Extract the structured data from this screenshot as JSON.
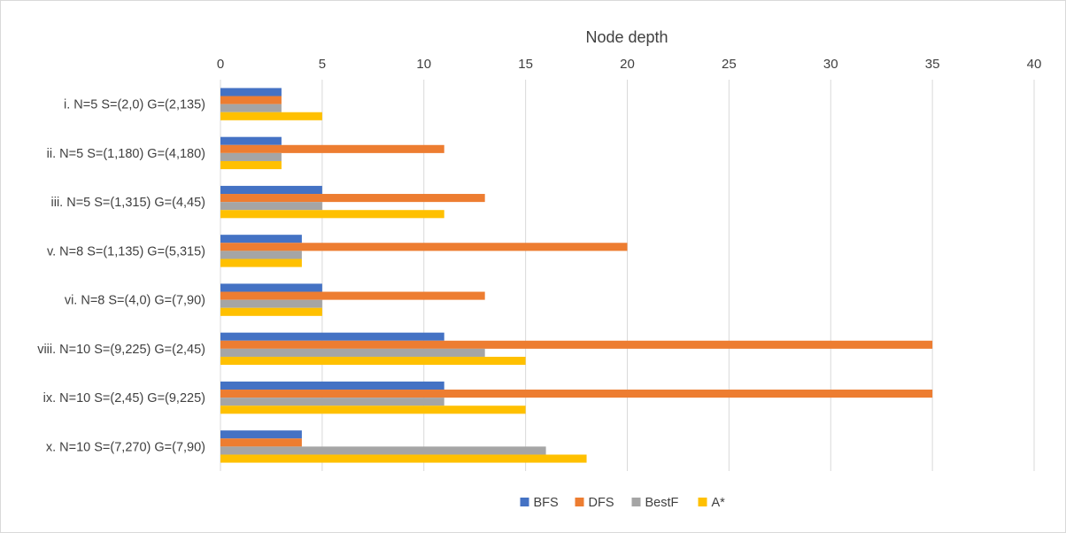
{
  "chart_data": {
    "type": "bar",
    "orientation": "horizontal",
    "title": "",
    "xlabel": "Node depth",
    "ylabel": "",
    "xlim": [
      0,
      40
    ],
    "xticks": [
      0,
      5,
      10,
      15,
      20,
      25,
      30,
      35,
      40
    ],
    "grid": true,
    "legend_position": "bottom",
    "categories": [
      "i. N=5 S=(2,0) G=(2,135)",
      "ii. N=5 S=(1,180) G=(4,180)",
      "iii.  N=5 S=(1,315) G=(4,45)",
      "v. N=8 S=(1,135) G=(5,315)",
      "vi. N=8 S=(4,0) G=(7,90)",
      "viii.  N=10 S=(9,225) G=(2,45)",
      "ix. N=10 S=(2,45) G=(9,225)",
      "x. N=10 S=(7,270) G=(7,90)"
    ],
    "series": [
      {
        "name": "BFS",
        "color": "#4472C4",
        "values": [
          3,
          3,
          5,
          4,
          5,
          11,
          11,
          4
        ]
      },
      {
        "name": "DFS",
        "color": "#ED7D31",
        "values": [
          3,
          11,
          13,
          20,
          13,
          35,
          35,
          4
        ]
      },
      {
        "name": "BestF",
        "color": "#A5A5A5",
        "values": [
          3,
          3,
          5,
          4,
          5,
          13,
          11,
          16
        ]
      },
      {
        "name": "A*",
        "color": "#FFC000",
        "values": [
          5,
          3,
          11,
          4,
          5,
          15,
          15,
          18
        ]
      }
    ]
  }
}
